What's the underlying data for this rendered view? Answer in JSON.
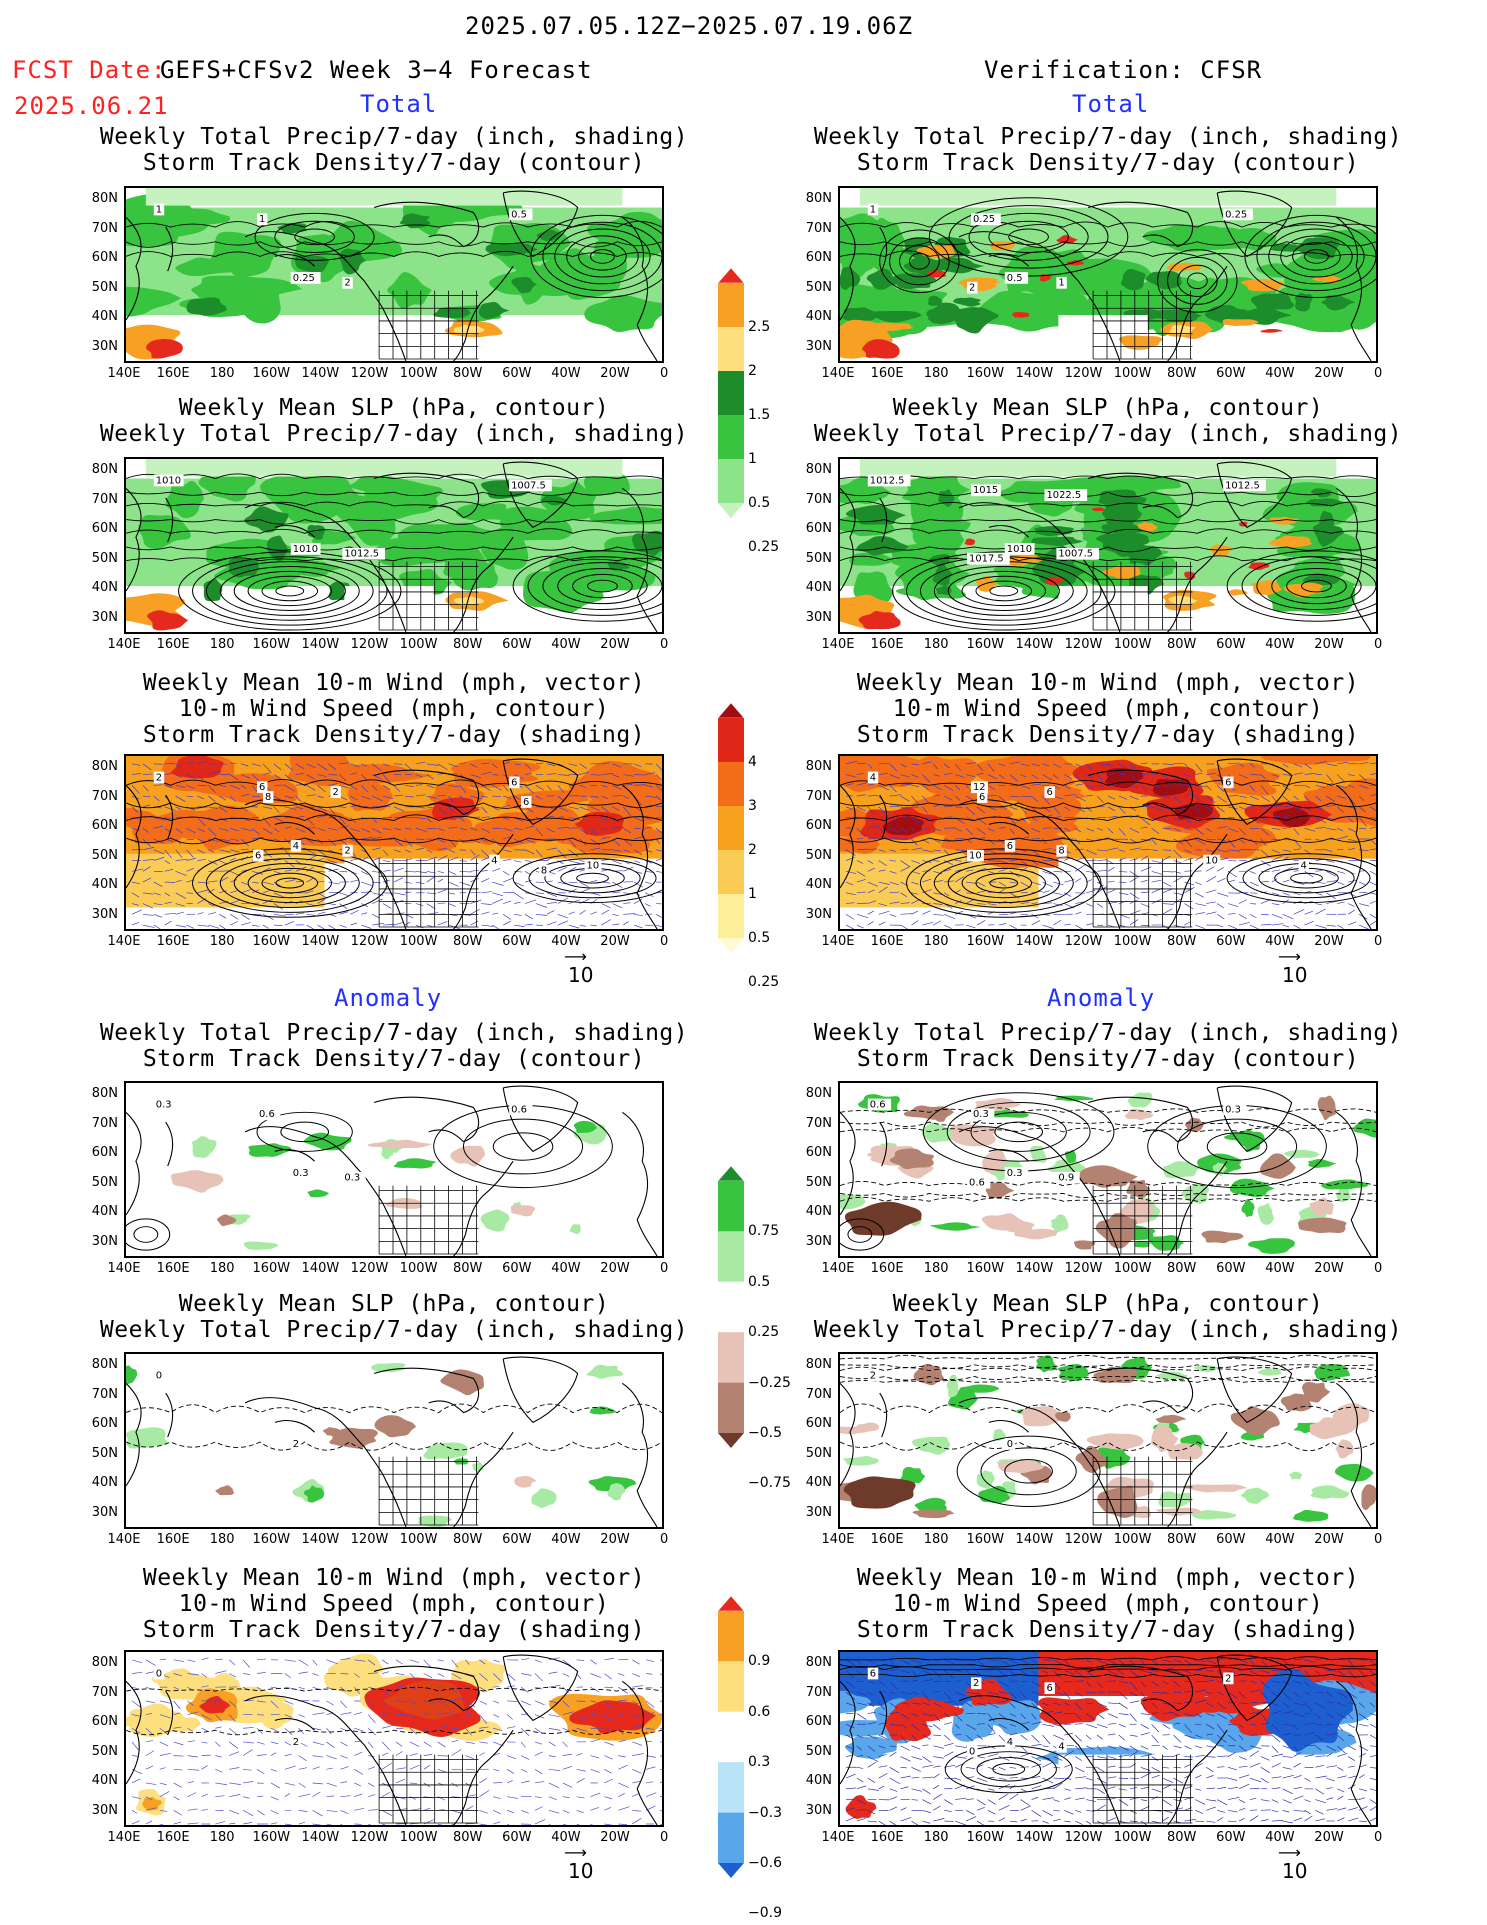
{
  "header": {
    "period": "2025.07.05.12Z−2025.07.19.06Z",
    "fcst_label": "FCST Date:",
    "model": "GEFS+CFSv2 Week 3−4 Forecast",
    "fcst_date": "2025.06.21",
    "verification": "Verification: CFSR"
  },
  "sections": {
    "total_left": "Total",
    "total_right": "Total",
    "anomaly_left": "Anomaly",
    "anomaly_right": "Anomaly"
  },
  "titles": {
    "p1": [
      "Weekly Total Precip/7-day (inch, shading)",
      "Storm Track Density/7-day (contour)"
    ],
    "p2": [
      "Weekly Mean SLP (hPa, contour)",
      "Weekly Total Precip/7-day (inch, shading)"
    ],
    "p3": [
      "Weekly Mean 10-m Wind (mph, vector)",
      "10-m Wind Speed (mph, contour)",
      "Storm Track Density/7-day (shading)"
    ]
  },
  "axes": {
    "lat": [
      "80N",
      "70N",
      "60N",
      "50N",
      "40N",
      "30N"
    ],
    "lon": [
      "140E",
      "160E",
      "180",
      "160W",
      "140W",
      "120W",
      "100W",
      "80W",
      "60W",
      "40W",
      "20W",
      "0"
    ]
  },
  "vector_ref": "10",
  "colorbars": {
    "precip_total": {
      "labels": [
        "2.5",
        "2",
        "1.5",
        "1",
        "0.5",
        "0.25"
      ],
      "colors": [
        "#e5291c",
        "#f8a023",
        "#fde07d",
        "#1d8c2a",
        "#39c43f",
        "#8ce38a",
        "#c6f2c0"
      ]
    },
    "storm_total": {
      "labels": [
        "4",
        "3",
        "2",
        "1",
        "0.5",
        "0.25"
      ],
      "colors": [
        "#a10d12",
        "#e02818",
        "#f26c1a",
        "#f7a11f",
        "#fbcc55",
        "#fdee9a",
        "#fffbd0"
      ]
    },
    "precip_anom": {
      "labels": [
        "0.75",
        "0.5",
        "0.25",
        "−0.25",
        "−0.5",
        "−0.75"
      ],
      "colors": [
        "#1d8c2a",
        "#39c43f",
        "#a8eaa3",
        "#ffffff",
        "#e6c3b6",
        "#b48270",
        "#6e3a2a"
      ]
    },
    "storm_anom": {
      "labels": [
        "0.9",
        "0.6",
        "0.3",
        "−0.3",
        "−0.6",
        "−0.9"
      ],
      "colors": [
        "#e5291c",
        "#f8a023",
        "#fde07d",
        "#ffffff",
        "#b9e3f7",
        "#5aa6ea",
        "#1e5fd0"
      ]
    }
  },
  "contour_labels": {
    "r1L": [
      "1",
      "0.25",
      "0.5",
      "2",
      "1"
    ],
    "r1R": [
      "1",
      "0.5",
      "0.25",
      "1",
      "0.25",
      "2"
    ],
    "r2L": [
      "1010",
      "1010",
      "1007.5",
      "1012.5"
    ],
    "r2R": [
      "1012.5",
      "1010",
      "1012.5",
      "1007.5",
      "1015",
      "1017.5",
      "1022.5"
    ],
    "r3L": [
      "2",
      "4",
      "6",
      "2",
      "6",
      "6",
      "2",
      "4",
      "8",
      "10",
      "6",
      "8"
    ],
    "r3R": [
      "4",
      "6",
      "6",
      "8",
      "12",
      "10",
      "6",
      "10",
      "6",
      "4"
    ],
    "r4L": [
      "0.3",
      "0.3",
      "0.6",
      "0.3",
      "0.6"
    ],
    "r4R": [
      "0.6",
      "0.3",
      "0.3",
      "0.9",
      "0.3",
      "0.6"
    ],
    "r5L": [
      "0",
      "2"
    ],
    "r5R": [
      "2",
      "0"
    ],
    "r6L": [
      "0",
      "2"
    ],
    "r6R": [
      "6",
      "4",
      "2",
      "4",
      "2",
      "0",
      "6"
    ]
  }
}
